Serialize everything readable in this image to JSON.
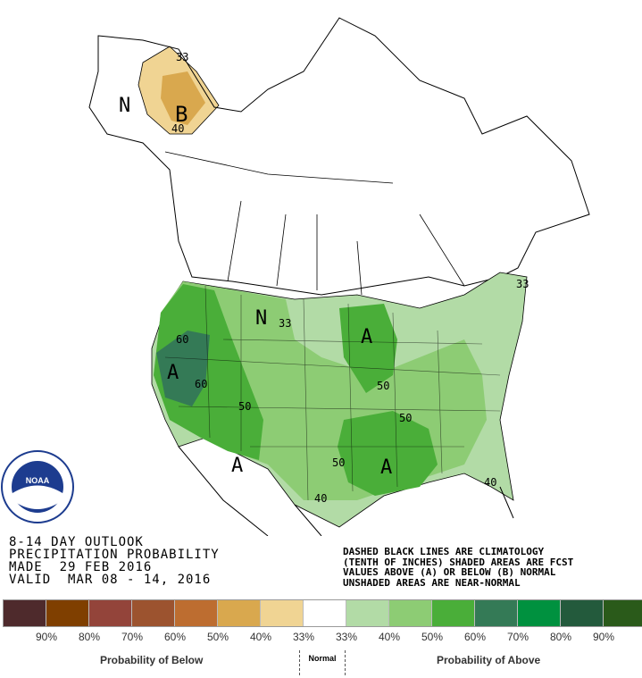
{
  "title": {
    "line1": "8-14 DAY OUTLOOK",
    "line2": "PRECIPITATION PROBABILITY",
    "line3": "MADE  29 FEB 2016",
    "line4": "VALID  MAR 08 - 14, 2016"
  },
  "notes": {
    "line1": "DASHED BLACK LINES ARE CLIMATOLOGY",
    "line2": "(TENTH OF INCHES) SHADED AREAS ARE FCST",
    "line3": "VALUES ABOVE (A) OR BELOW (B) NORMAL",
    "line4": "UNSHADED AREAS ARE NEAR-NORMAL"
  },
  "logo": {
    "text": "NOAA",
    "ring": "NATIONAL OCEANIC AND ATMOSPHERIC ADMINISTRATION · U.S. DEPARTMENT OF COMMERCE"
  },
  "map_labels": {
    "n_alaska": "N",
    "b_alaska": "B",
    "c33_alaska": "33",
    "c40_alaska": "40",
    "n_north": "N",
    "c33_north": "33",
    "a_midwest": "A",
    "a_west": "A",
    "c60_a": "60",
    "c60_b": "60",
    "c50_west": "50",
    "a_southwest": "A",
    "c50_south": "50",
    "a_south": "A",
    "c50_east_a": "50",
    "c50_east_b": "50",
    "c40_texas": "40",
    "c40_florida": "40",
    "c33_northeast": "33"
  },
  "legend": {
    "colors": [
      "#4e2a2c",
      "#7f3f00",
      "#93443a",
      "#9c532f",
      "#bd6d30",
      "#d9a84e",
      "#f0d493",
      "#ffffff",
      "#b2dba6",
      "#8dcc74",
      "#4aae39",
      "#347a56",
      "#00913f",
      "#235a3c",
      "#2a5a1a"
    ],
    "ticks": [
      "90%",
      "80%",
      "70%",
      "60%",
      "50%",
      "40%",
      "33%",
      "33%",
      "40%",
      "50%",
      "60%",
      "70%",
      "80%",
      "90%"
    ],
    "below_label": "Probability of Below",
    "normal_label": "Normal",
    "above_label": "Probability of Above"
  }
}
